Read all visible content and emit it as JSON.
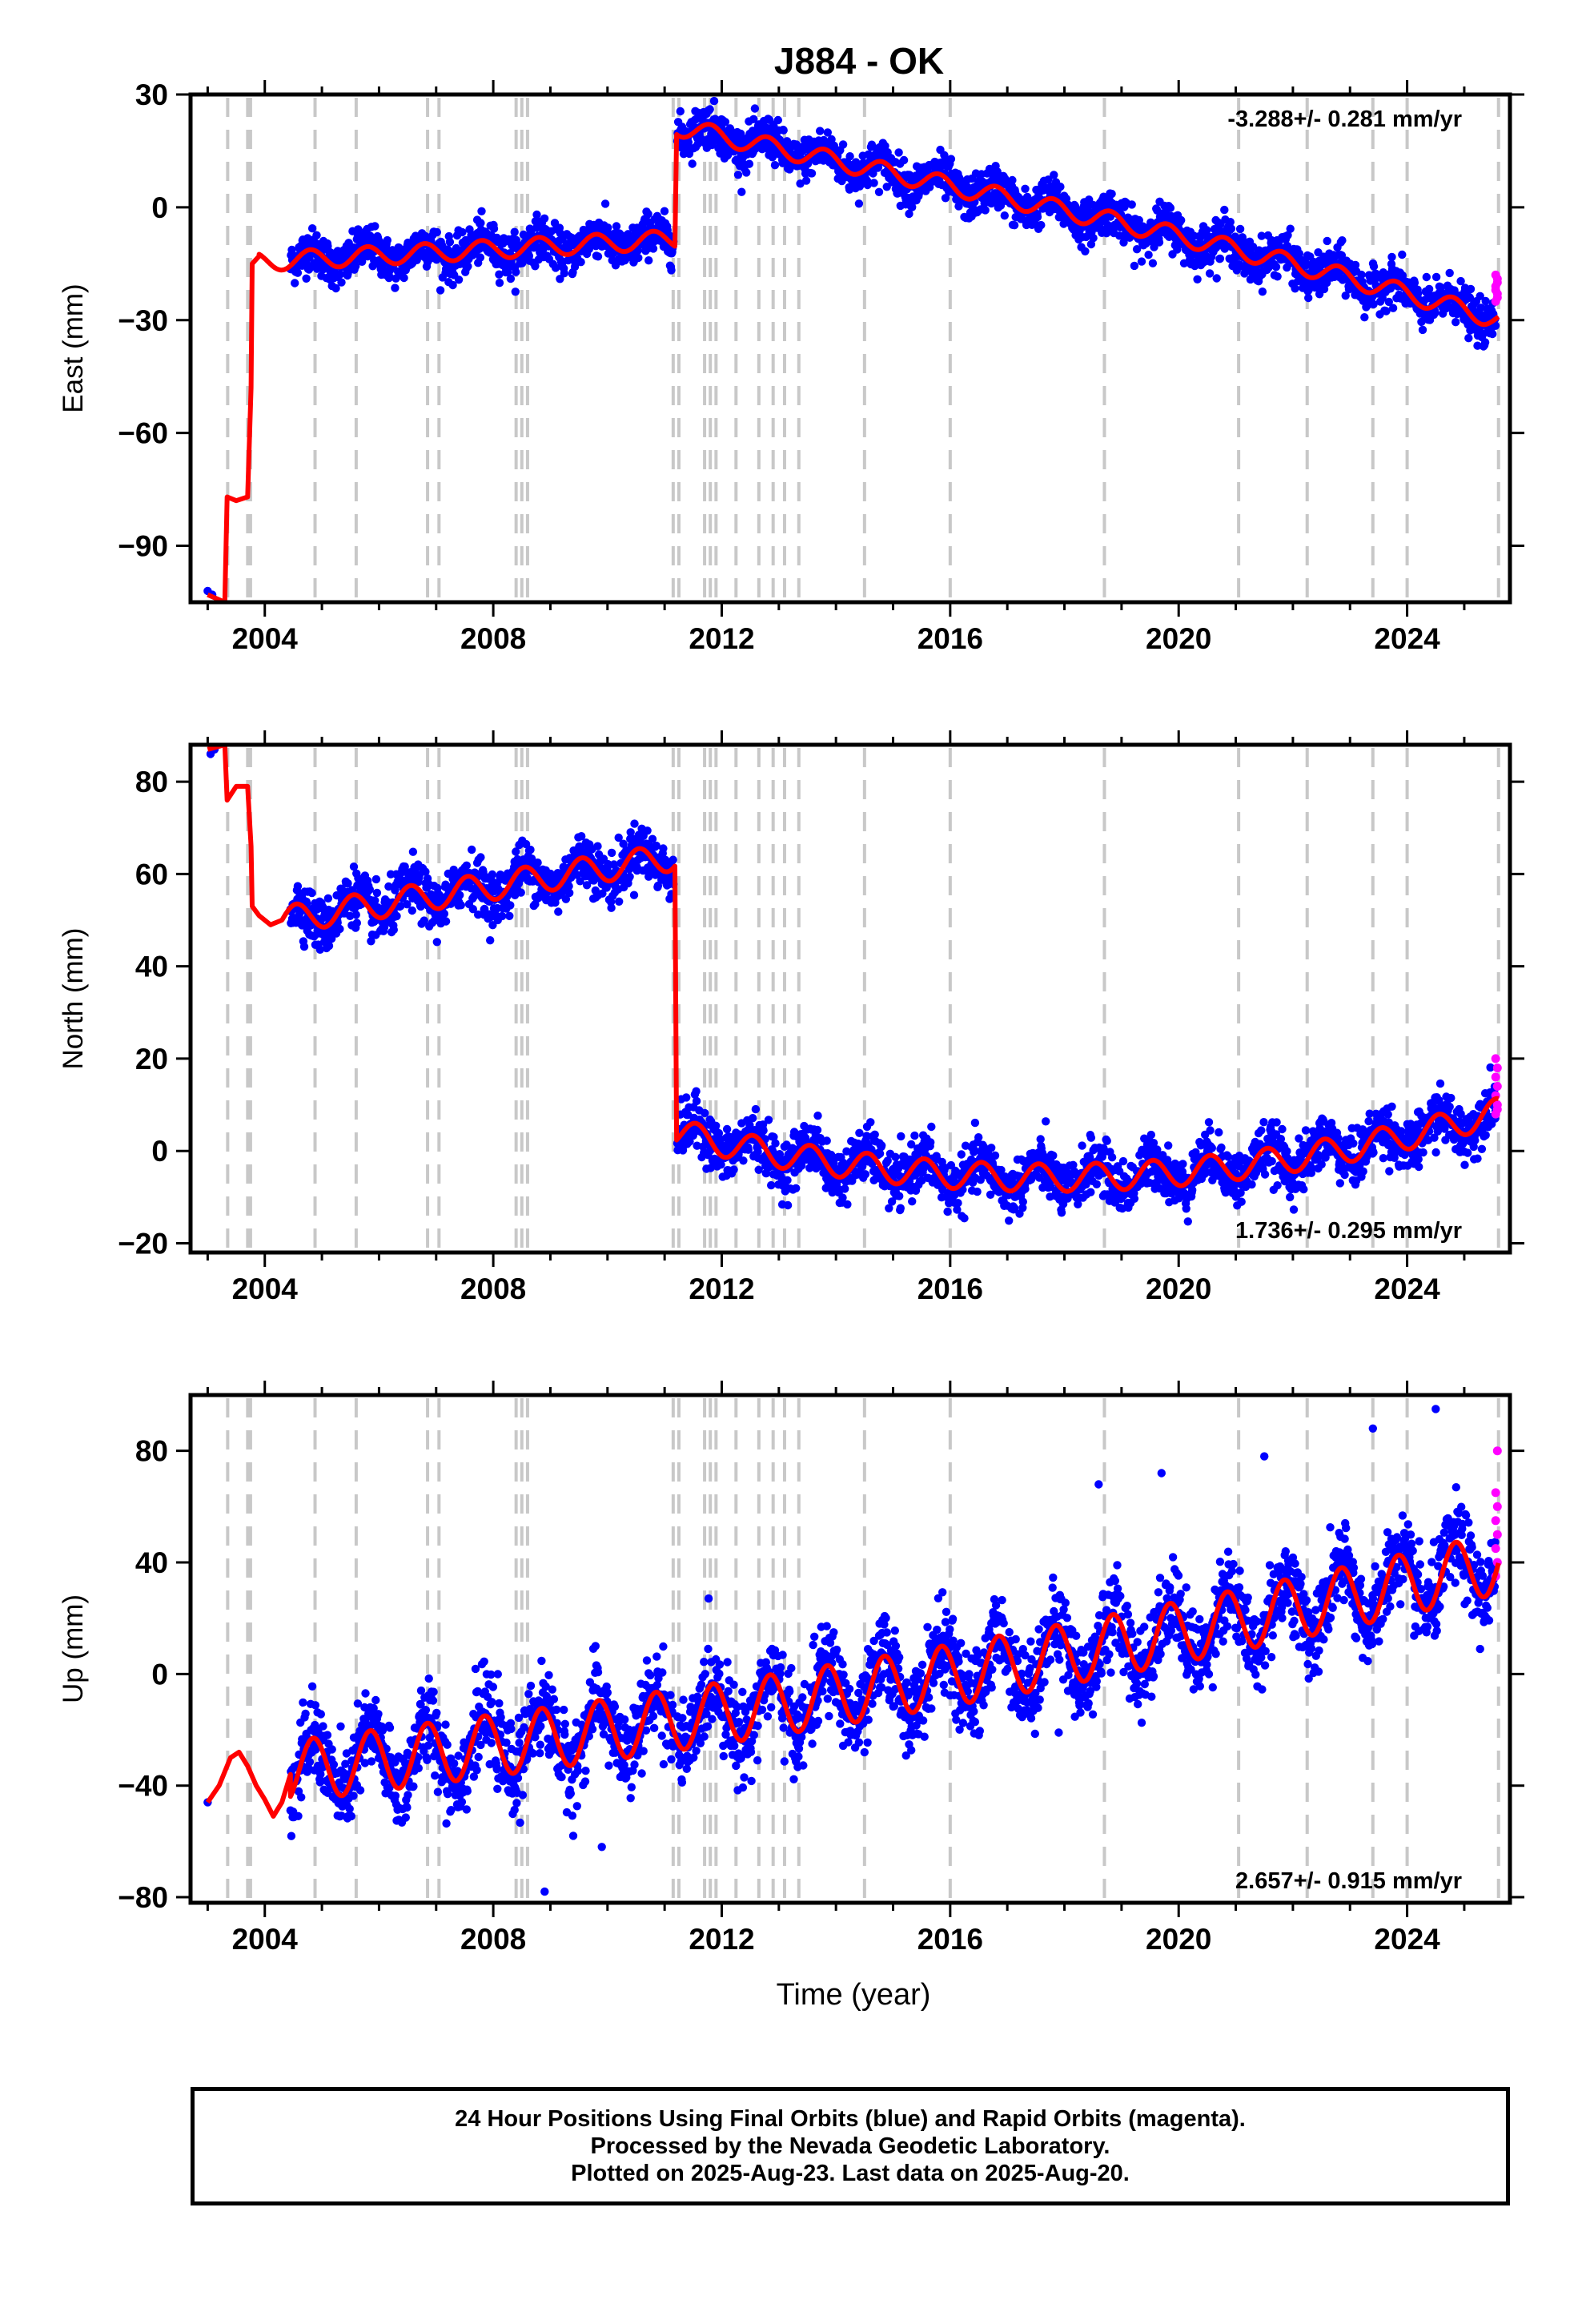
{
  "figure": {
    "title": "J884 - OK",
    "xlabel": "Time (year)"
  },
  "footer": {
    "line1": "24 Hour Positions Using Final Orbits (blue) and Rapid Orbits (magenta).",
    "line2": "Processed by the Nevada Geodetic Laboratory.",
    "line3": "Plotted on 2025-Aug-23. Last data on 2025-Aug-20."
  },
  "colors": {
    "final_orbits": "#0000ff",
    "rapid_orbits": "#ff00ff",
    "model": "#ff0000",
    "event_lines": "#c8c8c8"
  },
  "event_lines": [
    2003.35,
    2003.7,
    2003.75,
    2004.88,
    2005.6,
    2006.85,
    2007.05,
    2008.4,
    2008.5,
    2008.6,
    2011.15,
    2011.25,
    2011.7,
    2011.8,
    2011.9,
    2012.25,
    2012.65,
    2012.9,
    2013.1,
    2013.35,
    2014.5,
    2016.0,
    2018.7,
    2021.05,
    2022.25,
    2023.4,
    2024.0,
    2025.6
  ],
  "chart_data": [
    {
      "type": "scatter",
      "component": "east",
      "ylabel": "East (mm)",
      "annotation": "-3.288+/- 0.281 mm/yr",
      "annotation_position": "top-right",
      "xlim": [
        2002.7,
        2025.8
      ],
      "ylim": [
        -105,
        30
      ],
      "xticks": [
        2004,
        2008,
        2012,
        2016,
        2020,
        2024
      ],
      "yticks": [
        30,
        0,
        -30,
        -60,
        -90
      ],
      "ytick_labels": [
        "30",
        "0",
        "−30",
        "−60",
        "−90"
      ],
      "pre_data": [
        [
          2003.0,
          -102
        ],
        [
          2003.08,
          -103
        ]
      ],
      "model": {
        "step_points": [
          [
            2003.0,
            -103
          ],
          [
            2003.3,
            -105
          ],
          [
            2003.34,
            -77
          ],
          [
            2003.5,
            -78
          ],
          [
            2003.7,
            -77
          ],
          [
            2003.76,
            -48
          ],
          [
            2003.78,
            -15
          ],
          [
            2003.9,
            -13
          ]
        ],
        "segments": [
          {
            "start": 2003.9,
            "end": 2011.18,
            "offset": -14.5,
            "trend_per_yr": 0.82,
            "t0": 2003.9,
            "amplitude": 2.5,
            "phase": 0.55
          },
          {
            "start": 2011.2,
            "end": 2025.6,
            "offset": 21.5,
            "trend_per_yr": -3.288,
            "t0": 2011.2,
            "amplitude": 2.5,
            "phase": 0.55,
            "accel": -0.08,
            "accel_t0": 2018.5
          }
        ],
        "scatter_sigma": 2.8
      },
      "rapid_values": [
        -25,
        -23,
        -21,
        -19,
        -18,
        -20,
        -22,
        -24
      ]
    },
    {
      "type": "scatter",
      "component": "north",
      "ylabel": "North (mm)",
      "annotation": "1.736+/- 0.295 mm/yr",
      "annotation_position": "bottom-right",
      "xlim": [
        2002.7,
        2025.8
      ],
      "ylim": [
        -22,
        88
      ],
      "xticks": [
        2004,
        2008,
        2012,
        2016,
        2020,
        2024
      ],
      "yticks": [
        80,
        60,
        40,
        20,
        0,
        -20
      ],
      "ytick_labels": [
        "80",
        "60",
        "40",
        "20",
        "0",
        "−20"
      ],
      "pre_data": [
        [
          2003.05,
          86
        ],
        [
          2003.12,
          87
        ]
      ],
      "model": {
        "step_points": [
          [
            2003.0,
            87
          ],
          [
            2003.3,
            88
          ],
          [
            2003.34,
            76
          ],
          [
            2003.5,
            79
          ],
          [
            2003.7,
            79
          ],
          [
            2003.76,
            66
          ],
          [
            2003.78,
            53
          ],
          [
            2003.9,
            51
          ],
          [
            2004.1,
            49
          ],
          [
            2004.3,
            50
          ]
        ],
        "segments": [
          {
            "start": 2004.3,
            "end": 2011.18,
            "offset": 50,
            "trend_per_yr": 2.0,
            "t0": 2004.3,
            "amplitude": 3.0,
            "phase": 0.3
          },
          {
            "start": 2011.2,
            "end": 2025.6,
            "offset": 4,
            "trend_per_yr": -3.0,
            "t0": 2011.2,
            "amplitude": 3.0,
            "phase": 0.3,
            "accel": 0.23,
            "accel_t0": 2011.2
          }
        ],
        "scatter_sigma": 2.8
      },
      "rapid_values": [
        8,
        10,
        12,
        14,
        16,
        18,
        20,
        9
      ]
    },
    {
      "type": "scatter",
      "component": "up",
      "ylabel": "Up (mm)",
      "annotation": "2.657+/- 0.915 mm/yr",
      "annotation_position": "bottom-right",
      "xlim": [
        2002.7,
        2025.8
      ],
      "ylim": [
        -82,
        100
      ],
      "xticks": [
        2004,
        2008,
        2012,
        2016,
        2020,
        2024
      ],
      "yticks": [
        80,
        40,
        0,
        -40,
        -80
      ],
      "ytick_labels": [
        "80",
        "40",
        "0",
        "−40",
        "−80"
      ],
      "pre_data": [
        [
          2003.0,
          -46
        ]
      ],
      "model": {
        "step_points": [
          [
            2003.0,
            -46
          ],
          [
            2003.2,
            -40
          ],
          [
            2003.4,
            -30
          ],
          [
            2003.55,
            -28
          ],
          [
            2003.7,
            -33
          ],
          [
            2003.85,
            -40
          ],
          [
            2004.0,
            -45
          ],
          [
            2004.15,
            -51
          ],
          [
            2004.3,
            -46
          ],
          [
            2004.45,
            -36
          ]
        ],
        "segments": [
          {
            "start": 2004.45,
            "end": 2025.6,
            "offset": -35,
            "trend_per_yr": 2.657,
            "t0": 2004.45,
            "amplitude": 11,
            "phase": 0.6,
            "accel": 0.06,
            "accel_t0": 2008.0
          }
        ],
        "scatter_sigma": 7.5
      },
      "outliers": [
        [
          2008.9,
          -78
        ],
        [
          2009.9,
          -62
        ],
        [
          2009.4,
          -58
        ],
        [
          2017.9,
          -21
        ],
        [
          2023.4,
          88
        ],
        [
          2024.5,
          95
        ],
        [
          2018.6,
          68
        ],
        [
          2019.7,
          72
        ],
        [
          2021.5,
          78
        ]
      ],
      "rapid_values": [
        35,
        40,
        45,
        50,
        55,
        60,
        65,
        80
      ]
    }
  ]
}
